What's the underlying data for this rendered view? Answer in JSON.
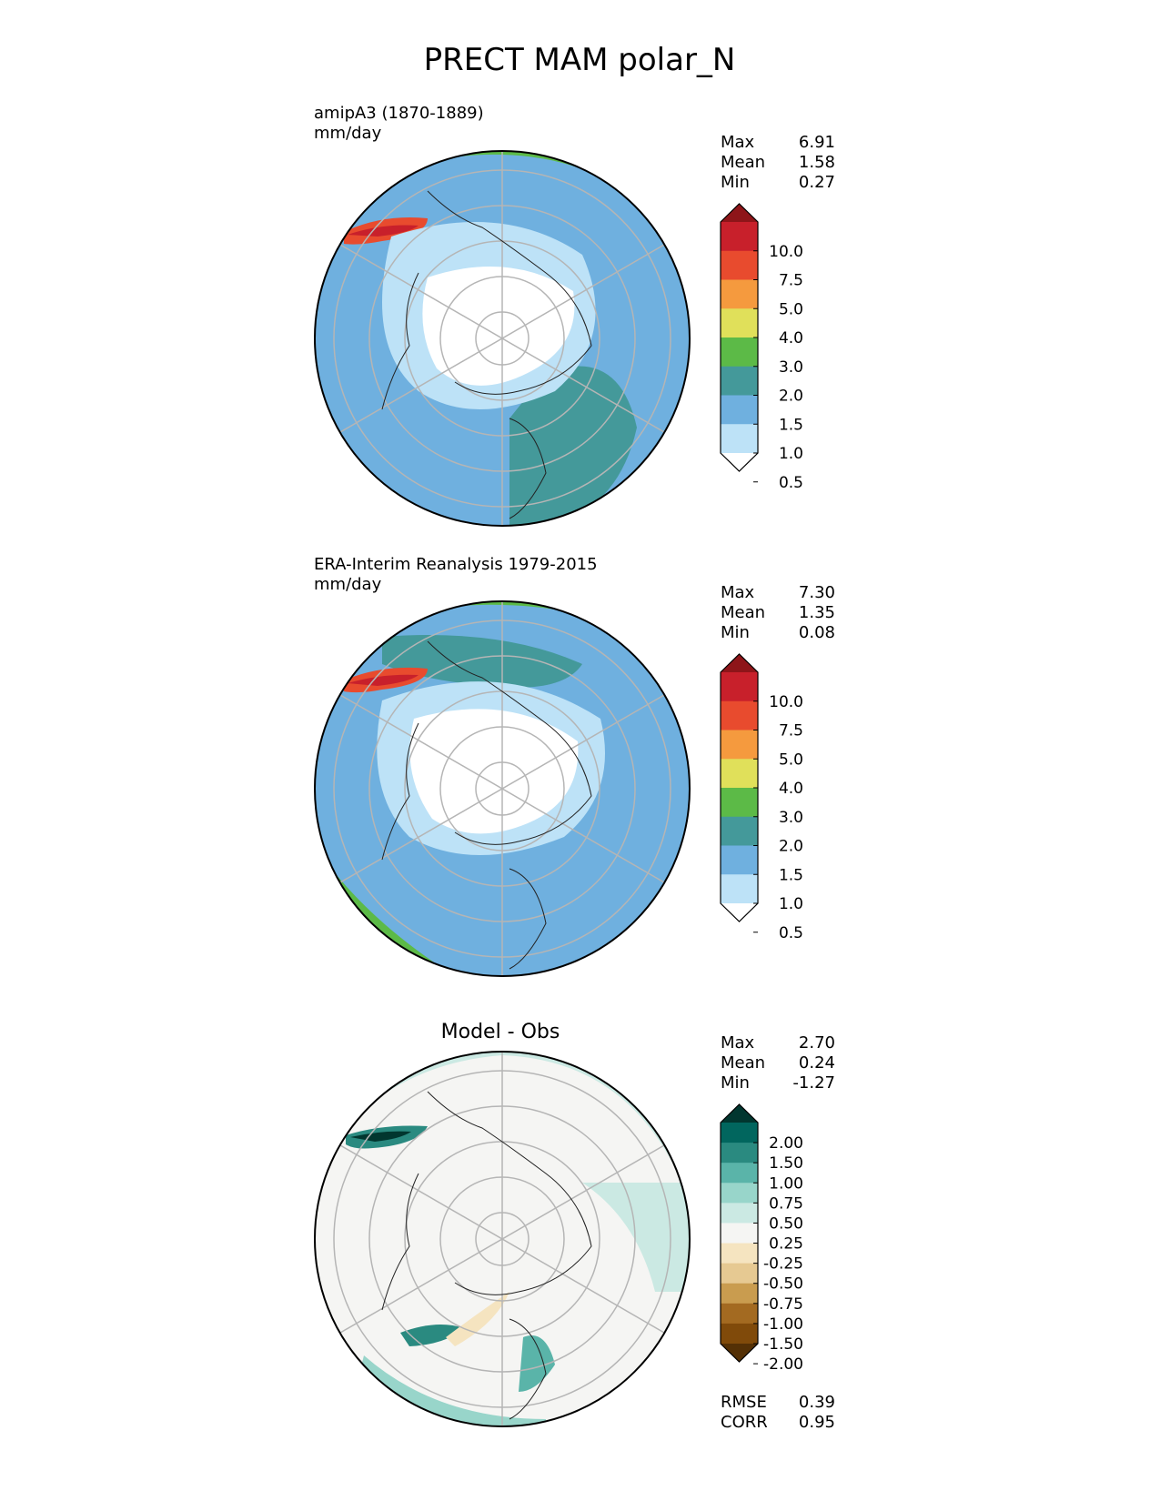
{
  "figure": {
    "title": "PRECT MAM polar_N"
  },
  "panels": [
    {
      "id": "test",
      "label": "amipA3 (1870-1889)",
      "units": "mm/day",
      "stats": [
        {
          "label": "Max",
          "value": "6.91"
        },
        {
          "label": "Mean",
          "value": "1.58"
        },
        {
          "label": "Min",
          "value": "0.27"
        }
      ],
      "colorbar": {
        "labels": [
          "10.0",
          "7.5",
          "5.0",
          "4.0",
          "3.0",
          "2.0",
          "1.5",
          "1.0",
          "0.5"
        ],
        "colors": [
          "#8e1519",
          "#c8202b",
          "#e84b2e",
          "#f59a3e",
          "#e0e05a",
          "#5cba47",
          "#44999a",
          "#6fb0df",
          "#bde2f7",
          "#ffffff"
        ]
      }
    },
    {
      "id": "reference",
      "label": "ERA-Interim Reanalysis 1979-2015",
      "units": "mm/day",
      "stats": [
        {
          "label": "Max",
          "value": "7.30"
        },
        {
          "label": "Mean",
          "value": "1.35"
        },
        {
          "label": "Min",
          "value": "0.08"
        }
      ],
      "colorbar": {
        "labels": [
          "10.0",
          "7.5",
          "5.0",
          "4.0",
          "3.0",
          "2.0",
          "1.5",
          "1.0",
          "0.5"
        ],
        "colors": [
          "#8e1519",
          "#c8202b",
          "#e84b2e",
          "#f59a3e",
          "#e0e05a",
          "#5cba47",
          "#44999a",
          "#6fb0df",
          "#bde2f7",
          "#ffffff"
        ]
      }
    },
    {
      "id": "diff",
      "title": "Model - Obs",
      "stats": [
        {
          "label": "Max",
          "value": "2.70"
        },
        {
          "label": "Mean",
          "value": "0.24"
        },
        {
          "label": "Min",
          "value": "-1.27"
        }
      ],
      "extra_stats": [
        {
          "label": "RMSE",
          "value": "0.39"
        },
        {
          "label": "CORR",
          "value": "0.95"
        }
      ],
      "colorbar": {
        "labels": [
          "2.00",
          "1.50",
          "1.00",
          "0.75",
          "0.50",
          "0.25",
          "-0.25",
          "-0.50",
          "-0.75",
          "-1.00",
          "-1.50",
          "-2.00"
        ],
        "colors": [
          "#01362f",
          "#01665e",
          "#2a8a80",
          "#5ab4a9",
          "#98d5ca",
          "#cbe9e3",
          "#f5f5f3",
          "#f5e4c0",
          "#e6c992",
          "#c99c4f",
          "#a36a21",
          "#804a0a",
          "#543005"
        ]
      }
    }
  ],
  "chart_data": {
    "type": "heatmap",
    "title": "PRECT MAM polar_N",
    "projection": "north polar stereographic",
    "panels": [
      {
        "name": "amipA3 (1870-1889)",
        "units": "mm/day",
        "max": 6.91,
        "mean": 1.58,
        "min": 0.27,
        "levels": [
          0.5,
          1.0,
          1.5,
          2.0,
          3.0,
          4.0,
          5.0,
          7.5,
          10.0
        ]
      },
      {
        "name": "ERA-Interim Reanalysis 1979-2015",
        "units": "mm/day",
        "max": 7.3,
        "mean": 1.35,
        "min": 0.08,
        "levels": [
          0.5,
          1.0,
          1.5,
          2.0,
          3.0,
          4.0,
          5.0,
          7.5,
          10.0
        ]
      },
      {
        "name": "Model - Obs",
        "max": 2.7,
        "mean": 0.24,
        "min": -1.27,
        "rmse": 0.39,
        "corr": 0.95,
        "levels": [
          -2.0,
          -1.5,
          -1.0,
          -0.75,
          -0.5,
          -0.25,
          0.25,
          0.5,
          0.75,
          1.0,
          1.5,
          2.0
        ]
      }
    ]
  }
}
